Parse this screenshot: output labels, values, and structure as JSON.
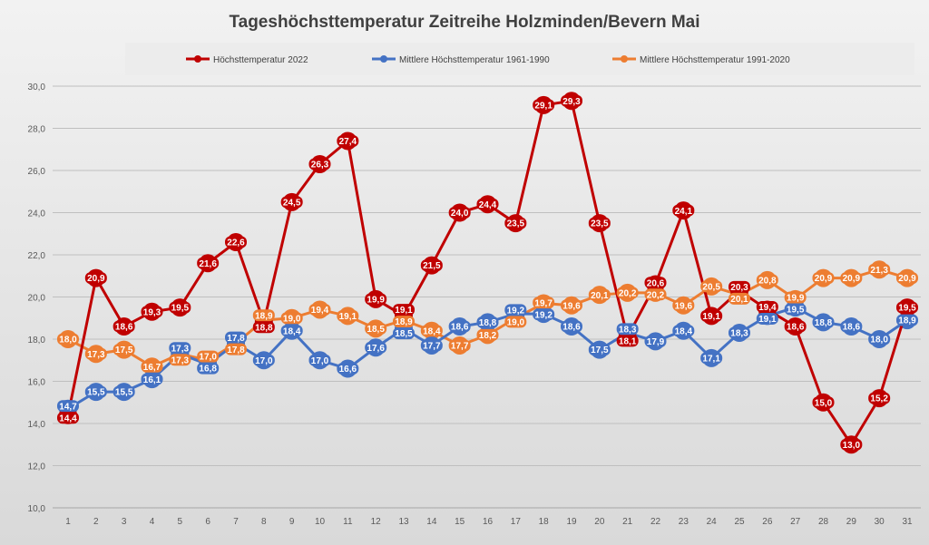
{
  "chart_data": {
    "type": "line",
    "title": "Tageshöchsttemperatur Zeitreihe Holzminden/Bevern Mai",
    "xlabel": "",
    "ylabel": "",
    "ylim": [
      10,
      30
    ],
    "yticks": [
      "10,0",
      "12,0",
      "14,0",
      "16,0",
      "18,0",
      "20,0",
      "22,0",
      "24,0",
      "26,0",
      "28,0",
      "30,0"
    ],
    "x": [
      1,
      2,
      3,
      4,
      5,
      6,
      7,
      8,
      9,
      10,
      11,
      12,
      13,
      14,
      15,
      16,
      17,
      18,
      19,
      20,
      21,
      22,
      23,
      24,
      25,
      26,
      27,
      28,
      29,
      30,
      31
    ],
    "grid": true,
    "legend": "top",
    "series": [
      {
        "name": "Höchsttemperatur 2022",
        "color": "#c00000",
        "values": [
          14.4,
          20.9,
          18.6,
          19.3,
          19.5,
          21.6,
          22.6,
          18.8,
          24.5,
          26.3,
          27.4,
          19.9,
          19.1,
          21.5,
          24.0,
          24.4,
          23.5,
          29.1,
          29.3,
          23.5,
          18.1,
          20.6,
          24.1,
          19.1,
          20.3,
          19.4,
          18.6,
          15.0,
          13.0,
          15.2,
          19.5
        ]
      },
      {
        "name": "Mittlere Höchsttemperatur 1961-1990",
        "color": "#4472c4",
        "values": [
          14.7,
          15.5,
          15.5,
          16.1,
          17.3,
          16.8,
          17.8,
          17.0,
          18.4,
          17.0,
          16.6,
          17.6,
          18.5,
          17.7,
          18.6,
          18.8,
          19.2,
          19.2,
          18.6,
          17.5,
          18.3,
          17.9,
          18.4,
          17.1,
          18.3,
          19.1,
          19.5,
          18.8,
          18.6,
          18.0,
          18.9
        ]
      },
      {
        "name": "Mittlere Höchsttemperatur 1991-2020",
        "color": "#ed7d31",
        "values": [
          18.0,
          17.3,
          17.5,
          16.7,
          17.3,
          17.0,
          17.8,
          18.9,
          19.0,
          19.4,
          19.1,
          18.5,
          18.9,
          18.4,
          17.7,
          18.2,
          19.0,
          19.7,
          19.6,
          20.1,
          20.2,
          20.2,
          19.6,
          20.5,
          20.1,
          20.8,
          19.9,
          20.9,
          20.9,
          21.3,
          20.9
        ]
      }
    ]
  }
}
